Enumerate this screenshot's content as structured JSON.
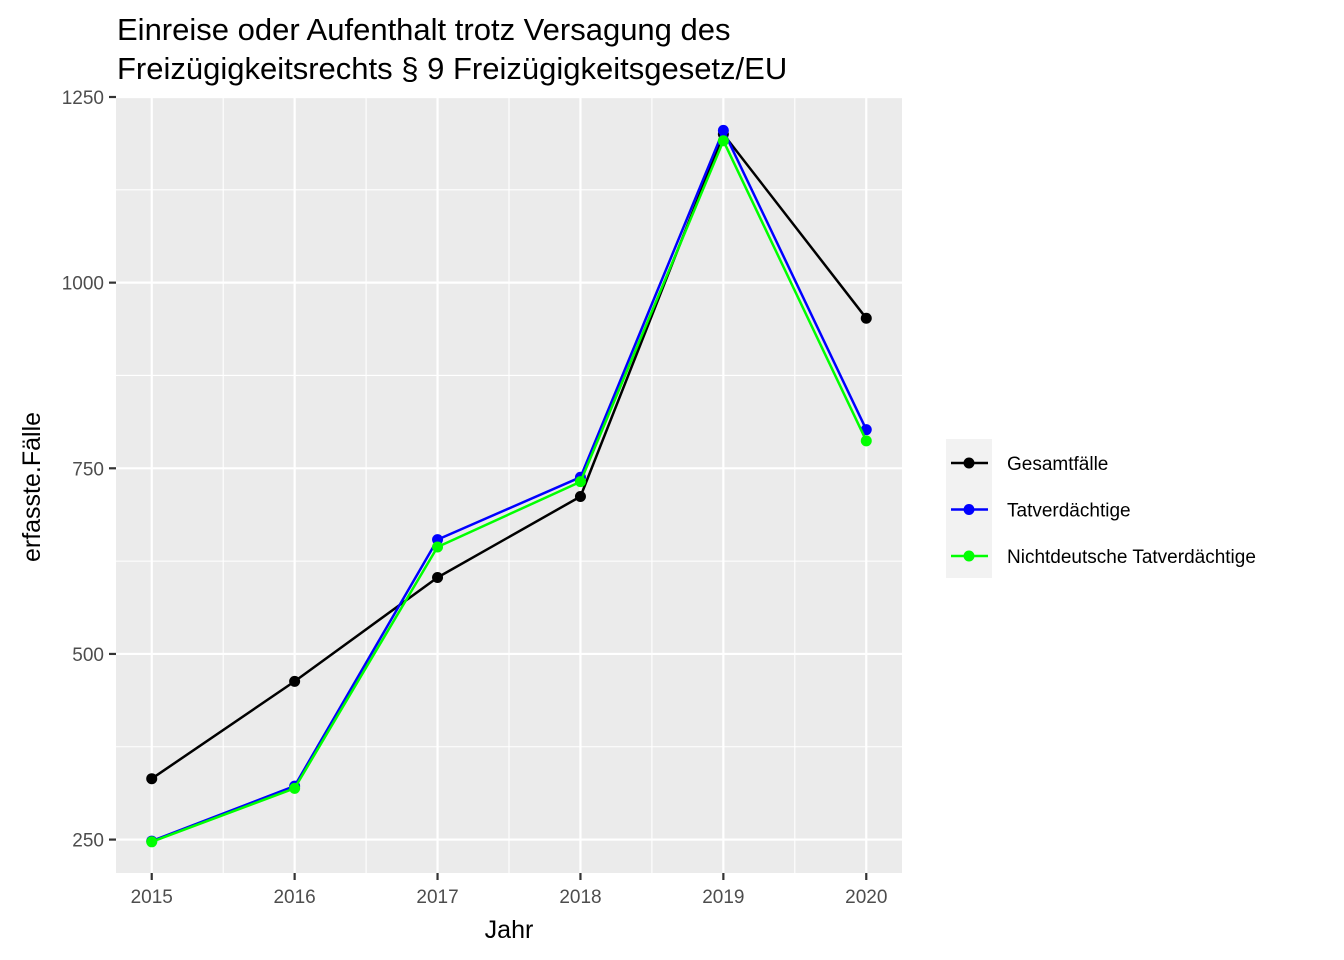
{
  "chart_data": {
    "type": "line",
    "title": [
      "Einreise oder Aufenthalt trotz Versagung des",
      "Freizügigkeitsrechts § 9 Freizügigkeitsgesetz/EU"
    ],
    "xlabel": "Jahr",
    "ylabel": "erfasste.Fälle",
    "x": [
      2015,
      2016,
      2017,
      2018,
      2019,
      2020
    ],
    "x_tick_labels": [
      "2015",
      "2016",
      "2017",
      "2018",
      "2019",
      "2020"
    ],
    "y_ticks": [
      250,
      500,
      750,
      1000,
      1250
    ],
    "y_tick_labels": [
      "250",
      "500",
      "750",
      "1000",
      "1250"
    ],
    "xlim": [
      2014.75,
      2020.25
    ],
    "ylim": [
      205,
      1250
    ],
    "grid": true,
    "legend_position": "right",
    "series": [
      {
        "name": "Gesamtfälle",
        "color": "#000000",
        "values": [
          332,
          463,
          603,
          712,
          1200,
          952
        ]
      },
      {
        "name": "Tatverdächtige",
        "color": "#0000ff",
        "values": [
          248,
          322,
          654,
          738,
          1205,
          802
        ]
      },
      {
        "name": "Nichtdeutsche Tatverdächtige",
        "color": "#00ff00",
        "values": [
          247,
          319,
          644,
          732,
          1191,
          787
        ]
      }
    ]
  }
}
